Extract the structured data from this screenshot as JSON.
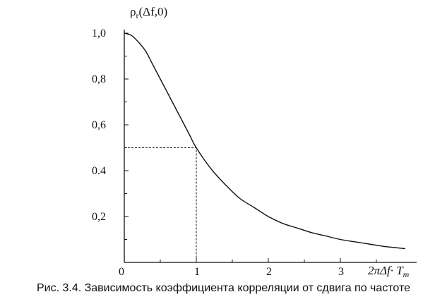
{
  "chart_data": {
    "type": "line",
    "title": "",
    "ylabel": "ρr(Δf,0)",
    "xlabel": "2πΔf· Tm",
    "xlim": [
      0,
      3.9
    ],
    "ylim": [
      0,
      1.05
    ],
    "x_ticks": [
      0,
      1,
      2,
      3
    ],
    "x_tick_labels": [
      "0",
      "1",
      "2",
      "3"
    ],
    "y_ticks": [
      0.2,
      0.4,
      0.6,
      0.8,
      1.0
    ],
    "y_tick_labels": [
      "0,2",
      "0.4",
      "0,6",
      "0,8",
      "1,0"
    ],
    "grid": false,
    "legend": "none",
    "series": [
      {
        "line_style": "solid",
        "x": [
          0,
          0.1,
          0.2,
          0.3,
          0.4,
          0.5,
          0.6,
          0.7,
          0.8,
          0.9,
          1.0,
          1.2,
          1.4,
          1.6,
          1.8,
          2.0,
          2.2,
          2.4,
          2.6,
          2.8,
          3.0,
          3.2,
          3.4,
          3.6,
          3.9
        ],
        "y": [
          1.0,
          0.99,
          0.96,
          0.92,
          0.86,
          0.8,
          0.74,
          0.68,
          0.62,
          0.56,
          0.5,
          0.41,
          0.34,
          0.28,
          0.24,
          0.2,
          0.17,
          0.15,
          0.13,
          0.115,
          0.1,
          0.09,
          0.08,
          0.07,
          0.06
        ]
      }
    ],
    "reference_lines": [
      {
        "line_style": "dashed",
        "points": [
          [
            0,
            0.5
          ],
          [
            1,
            0.5
          ],
          [
            1,
            0
          ]
        ]
      }
    ]
  },
  "caption": "Рис. 3.4. Зависимость коэффициента корреляции от сдвига по частоте"
}
